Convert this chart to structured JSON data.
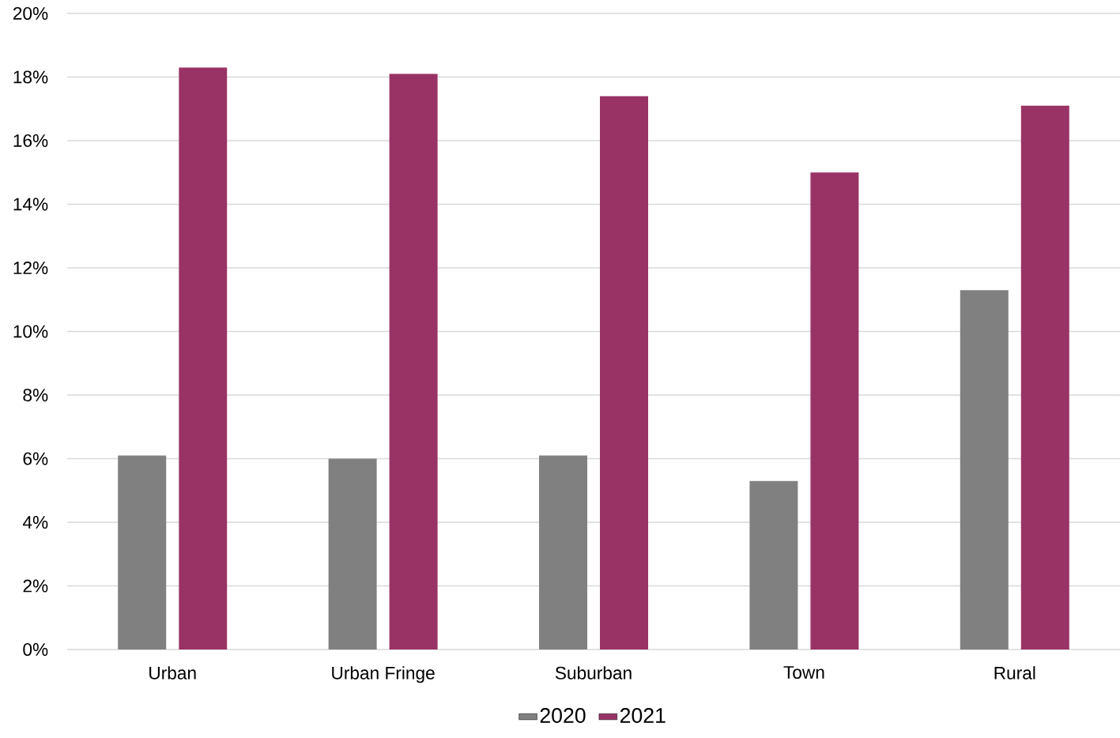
{
  "chart_data": {
    "type": "bar",
    "categories": [
      "Urban",
      "Urban Fringe",
      "Suburban",
      "Town",
      "Rural"
    ],
    "series": [
      {
        "name": "2020",
        "color": "#808080",
        "values": [
          6.1,
          6.0,
          6.1,
          5.3,
          11.3
        ]
      },
      {
        "name": "2021",
        "color": "#993366",
        "values": [
          18.3,
          18.1,
          17.4,
          15.0,
          17.1
        ]
      }
    ],
    "ylim": [
      0,
      20
    ],
    "yticks": [
      {
        "value": 0,
        "label": "0%"
      },
      {
        "value": 2,
        "label": "2%"
      },
      {
        "value": 4,
        "label": "4%"
      },
      {
        "value": 6,
        "label": "6%"
      },
      {
        "value": 8,
        "label": "8%"
      },
      {
        "value": 10,
        "label": "10%"
      },
      {
        "value": 12,
        "label": "12%"
      },
      {
        "value": 14,
        "label": "14%"
      },
      {
        "value": 16,
        "label": "16%"
      },
      {
        "value": 18,
        "label": "18%"
      },
      {
        "value": 20,
        "label": "20%"
      }
    ],
    "grid": "y",
    "legend": "bottom"
  }
}
